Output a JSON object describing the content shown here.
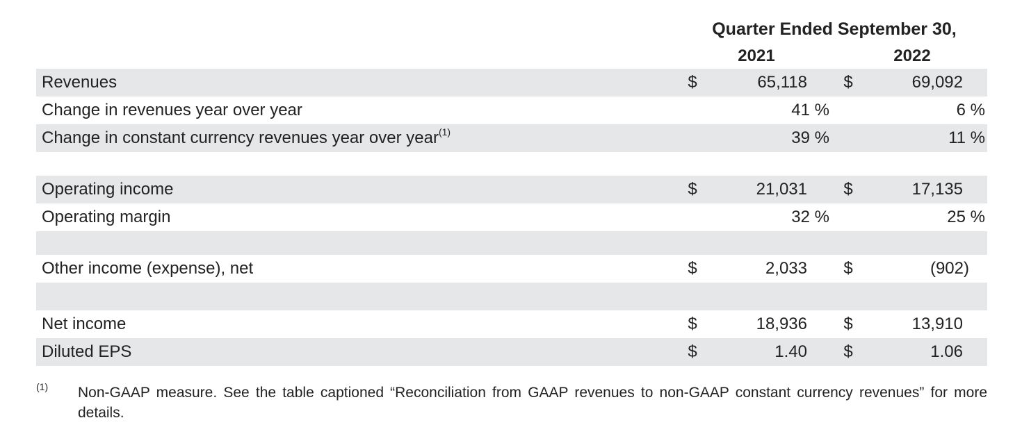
{
  "header": {
    "title": "Quarter Ended September 30,",
    "year1": "2021",
    "year2": "2022"
  },
  "rows": [
    {
      "label": "Revenues",
      "sup": "",
      "cur1": "$",
      "val1": "65,118",
      "cur2": "$",
      "val2": "69,092"
    },
    {
      "label": "Change in revenues year over year",
      "sup": "",
      "cur1": "",
      "val1": "41 %",
      "cur2": "",
      "val2": "6 %"
    },
    {
      "label": "Change in constant currency revenues year over year",
      "sup": "(1)",
      "cur1": "",
      "val1": "39 %",
      "cur2": "",
      "val2": "11 %"
    },
    {
      "label": "Operating income",
      "sup": "",
      "cur1": "$",
      "val1": "21,031",
      "cur2": "$",
      "val2": "17,135"
    },
    {
      "label": "Operating margin",
      "sup": "",
      "cur1": "",
      "val1": "32 %",
      "cur2": "",
      "val2": "25 %"
    },
    {
      "label": "Other income (expense), net",
      "sup": "",
      "cur1": "$",
      "val1": "2,033",
      "cur2": "$",
      "val2": "(902)"
    },
    {
      "label": "Net income",
      "sup": "",
      "cur1": "$",
      "val1": "18,936",
      "cur2": "$",
      "val2": "13,910"
    },
    {
      "label": "Diluted EPS",
      "sup": "",
      "cur1": "$",
      "val1": "1.40",
      "cur2": "$",
      "val2": "1.06"
    }
  ],
  "footnote": {
    "mark": "(1)",
    "text": "Non-GAAP measure. See the table captioned “Reconciliation from GAAP revenues to non-GAAP constant currency revenues” for more details."
  },
  "colors": {
    "row_shade": "#e6e7e9",
    "text": "#222222"
  }
}
